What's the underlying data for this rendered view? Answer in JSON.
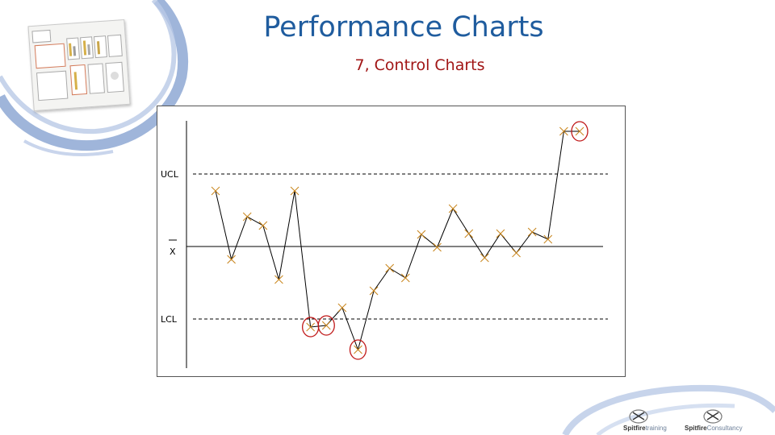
{
  "header": {
    "title": "Performance Charts",
    "subtitle": "7, Control Charts"
  },
  "chart_data": {
    "type": "line",
    "title": "",
    "xlabel": "",
    "ylabel": "",
    "control_limits": [
      {
        "label": "UCL",
        "style": "dashed",
        "y": 216
      },
      {
        "label": "X",
        "style": "solid",
        "y": 306
      },
      {
        "label": "LCL",
        "style": "dashed",
        "y": 396
      }
    ],
    "series": [
      {
        "line_color": "#000000",
        "marker": "x",
        "marker_color": "#c8841a",
        "x": [
          1,
          2,
          3,
          4,
          5,
          6,
          7,
          8,
          9,
          10,
          11,
          12,
          13,
          14,
          15,
          16,
          17,
          18,
          19,
          20,
          21,
          22,
          23,
          24
        ],
        "y": [
          237,
          322,
          269,
          280,
          347,
          237,
          406,
          404,
          382,
          434,
          361,
          333,
          345,
          291,
          307,
          259,
          290,
          320,
          290,
          314,
          288,
          297,
          163,
          163
        ]
      }
    ],
    "circled_points": [
      7,
      8,
      10,
      24
    ],
    "circle_color": "#c01818"
  },
  "logos": {
    "left": {
      "bold": "Spitfire",
      "thin": "training"
    },
    "right": {
      "bold": "Spitfire",
      "thin": "Consultancy"
    }
  }
}
